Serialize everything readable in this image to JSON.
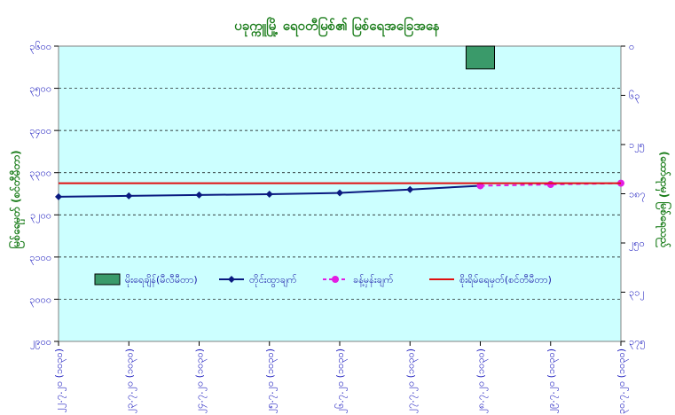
{
  "chart_data": {
    "type": "line",
    "title": "ပခုက္ကူမြို့ ရေ၀တီမြစ်၏ မြစ်ရေအခြေအနေ",
    "ylabel_left": "မြစ်ရေမှတ် (စင်တီမီတာ)",
    "ylabel_right": "(ထော်ရာမှ) မြစ်ရေသည်",
    "ylim_left": [
      2900,
      3600
    ],
    "yticks_left": [
      "၃၆၀၀",
      "၃၅၀၀",
      "၃၄၀၀",
      "၃၃၀၀",
      "၃၂၀၀",
      "၃၁၀၀",
      "၃၀၀၀",
      "၂၉၀၀"
    ],
    "yticks_right": [
      "၀",
      "၆၃",
      "၁၂၅",
      "၁၈၇",
      "၂၅၀",
      "၃၁၂",
      "၃၇၅"
    ],
    "categories": [
      "၂၂.၇.၂၀",
      "၂၃.၇.၂၀",
      "၂၄.၇.၂၀",
      "၂၅.၇.၂၀",
      "၂၆.၇.၂၀",
      "၂၇.၇.၂၀",
      "၂၈.၇.၂၀",
      "၂၉.၇.၂၀",
      "၃၀.၇.၂၀"
    ],
    "xtick_note": "(၁၀၃၀)",
    "grid": true,
    "legend_position": "lower-center",
    "series": [
      {
        "name": "မိုးရေချိန်(မီလီမီတာ)",
        "kind": "bar",
        "axis": "right",
        "color": "#3a9a6a",
        "values": [
          null,
          null,
          null,
          null,
          null,
          null,
          29,
          null,
          null
        ]
      },
      {
        "name": "တိုင်းထွာချက်",
        "kind": "line-diamond",
        "axis": "left",
        "color": "#0a1a80",
        "values": [
          3243,
          3245,
          3247,
          3249,
          3252,
          3260,
          3269,
          null,
          null
        ]
      },
      {
        "name": "ခန့်မှန်းချက်",
        "kind": "dashed-circle",
        "axis": "left",
        "color": "#e21ee2",
        "values": [
          null,
          null,
          null,
          null,
          null,
          null,
          3269,
          3272,
          3275
        ]
      },
      {
        "name": "စိုးရိမ်ရေမှတ်(စင်တီမီတာ)",
        "kind": "hline",
        "axis": "left",
        "color": "#e01010",
        "value": 3275
      }
    ]
  }
}
